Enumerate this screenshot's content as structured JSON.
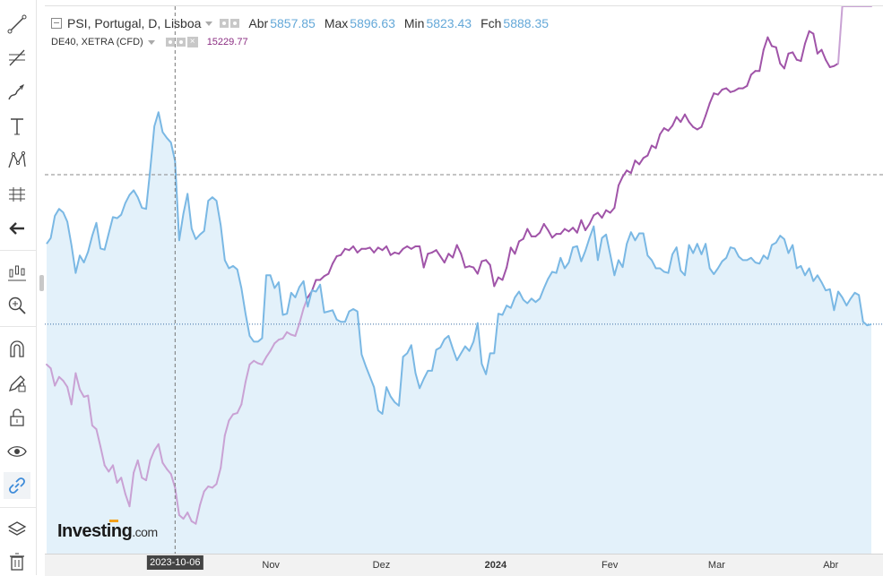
{
  "legend": {
    "main_symbol": "PSI, Portugal, D, Lisboa",
    "open_label": "Abr",
    "open_value": "5857.85",
    "high_label": "Max",
    "high_value": "5896.63",
    "low_label": "Min",
    "low_value": "5823.43",
    "close_label": "Fch",
    "close_value": "5888.35",
    "compare_symbol": "DE40, XETRA (CFD)",
    "compare_value": "15229.77"
  },
  "logo": {
    "brand": "Investing",
    "suffix": ".com"
  },
  "crosshair": {
    "date_label": "2023-10-06"
  },
  "colors": {
    "psi": "#7ab8e4",
    "psi_fill": "#e3f1fa",
    "de40": "#a054a8",
    "de40_faded": "#c9a2d4"
  },
  "toolbar_icons": [
    "trend-line-icon",
    "fib-icon",
    "brush-icon",
    "text-icon",
    "pattern-icon",
    "measure-icon",
    "back-arrow-icon",
    "indicators-icon",
    "zoom-in-icon",
    "magnet-icon",
    "lock-drawing-icon",
    "unlock-icon",
    "eye-icon",
    "link-icon",
    "layers-icon",
    "trash-icon"
  ],
  "chart_data": {
    "type": "line",
    "x_ticks": [
      {
        "label": "Nov",
        "date": "2023-11-01"
      },
      {
        "label": "Dez",
        "date": "2023-12-01"
      },
      {
        "label": "2024",
        "date": "2024-01-01"
      },
      {
        "label": "Fev",
        "date": "2024-02-01"
      },
      {
        "label": "Mar",
        "date": "2024-03-01"
      },
      {
        "label": "Abr",
        "date": "2024-04-01"
      }
    ],
    "crosshair_date": "2023-10-06",
    "last_date": "2024-04-12",
    "series": [
      {
        "name": "PSI, Portugal, D, Lisboa",
        "values": [
          436,
          441,
          460,
          466,
          463,
          455,
          435,
          411,
          426,
          420,
          429,
          443,
          454,
          432,
          431,
          445,
          459,
          458,
          461,
          471,
          478,
          482,
          476,
          467,
          466,
          500,
          537,
          549,
          532,
          527,
          523,
          507,
          439,
          462,
          479,
          449,
          440,
          444,
          447,
          473,
          476,
          473,
          452,
          422,
          415,
          417,
          414,
          398,
          376,
          357,
          352,
          352,
          355,
          409,
          409,
          398,
          403,
          375,
          376,
          394,
          390,
          399,
          404,
          382,
          396,
          395,
          401,
          377,
          378,
          379,
          371,
          369,
          369,
          378,
          380,
          378,
          341,
          331,
          322,
          313,
          293,
          290,
          313,
          305,
          300,
          297,
          339,
          342,
          349,
          325,
          312,
          320,
          327,
          327,
          345,
          347,
          354,
          357,
          346,
          336,
          342,
          348,
          344,
          352,
          368,
          333,
          324,
          342,
          342,
          376,
          375,
          383,
          381,
          390,
          395,
          388,
          385,
          389,
          386,
          389,
          398,
          406,
          412,
          411,
          424,
          415,
          420,
          433,
          434,
          421,
          430,
          441,
          451,
          422,
          441,
          444,
          427,
          409,
          422,
          416,
          436,
          446,
          439,
          445,
          445,
          426,
          422,
          415,
          415,
          412,
          411,
          427,
          433,
          413,
          409,
          435,
          428,
          436,
          427,
          436,
          415,
          410,
          415,
          421,
          424,
          433,
          432,
          425,
          422,
          422,
          424,
          420,
          419,
          426,
          423,
          435,
          437,
          443,
          440,
          428,
          435,
          415,
          417,
          409,
          415,
          404,
          409,
          403,
          396,
          397,
          379,
          395,
          390,
          383,
          389,
          394,
          392,
          369,
          366,
          367
        ],
        "color": "#7ab8e4"
      },
      {
        "name": "DE40, XETRA (CFD)",
        "values": [
          15820,
          15790,
          15650,
          15720,
          15690,
          15640,
          15500,
          15750,
          15620,
          15560,
          15570,
          15330,
          15300,
          15160,
          15010,
          14960,
          15010,
          14870,
          14910,
          14780,
          14680,
          14950,
          15050,
          14910,
          14890,
          15050,
          15130,
          15180,
          15030,
          14980,
          14940,
          14830,
          14610,
          14580,
          14630,
          14560,
          14540,
          14690,
          14800,
          14840,
          14830,
          14860,
          14990,
          15250,
          15370,
          15420,
          15430,
          15500,
          15680,
          15820,
          15850,
          15830,
          15820,
          15880,
          15930,
          15990,
          16020,
          16030,
          16080,
          16060,
          16050,
          16150,
          16270,
          16360,
          16410,
          16500,
          16500,
          16530,
          16550,
          16630,
          16690,
          16700,
          16750,
          16740,
          16770,
          16720,
          16750,
          16750,
          16760,
          16720,
          16760,
          16740,
          16770,
          16700,
          16720,
          16710,
          16750,
          16770,
          16750,
          16770,
          16770,
          16600,
          16710,
          16720,
          16740,
          16690,
          16640,
          16710,
          16680,
          16780,
          16710,
          16600,
          16610,
          16600,
          16550,
          16650,
          16660,
          16620,
          16450,
          16520,
          16500,
          16600,
          16760,
          16710,
          16810,
          16830,
          16910,
          16850,
          16850,
          16880,
          16950,
          16900,
          16840,
          16870,
          16870,
          16910,
          16890,
          16920,
          16880,
          16980,
          16900,
          16950,
          17020,
          17040,
          17000,
          17060,
          17040,
          17080,
          17260,
          17330,
          17380,
          17360,
          17460,
          17430,
          17480,
          17500,
          17580,
          17560,
          17670,
          17720,
          17700,
          17740,
          17810,
          17770,
          17830,
          17770,
          17730,
          17710,
          17730,
          17820,
          17920,
          18000,
          17990,
          18030,
          18040,
          18010,
          18020,
          18040,
          18040,
          18060,
          18150,
          18180,
          18180,
          18350,
          18450,
          18380,
          18370,
          18240,
          18200,
          18320,
          18330,
          18270,
          18260,
          18400,
          18500,
          18480,
          18320,
          18350,
          18270,
          18210,
          18220,
          18240
        ],
        "color": "#a054a8"
      }
    ],
    "psi_ylim": [
      170,
      640
    ],
    "de40_ylim": [
      14300,
      18700
    ],
    "grid": false,
    "legend_position": "top-left"
  }
}
